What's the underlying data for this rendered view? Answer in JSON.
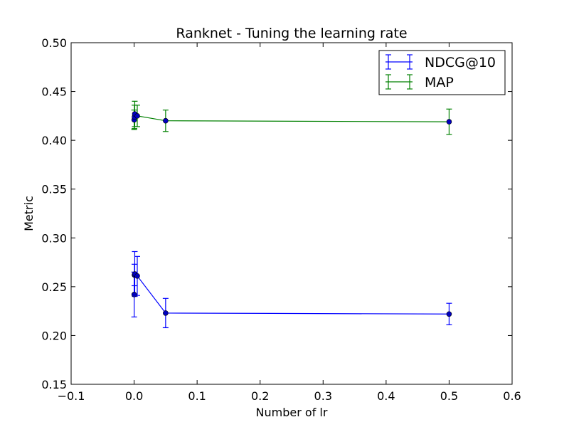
{
  "chart_data": {
    "type": "line",
    "title": "Ranknet - Tuning the learning rate",
    "xlabel": "Number of lr",
    "ylabel": "Metric",
    "xlim": [
      -0.1,
      0.6
    ],
    "ylim": [
      0.15,
      0.5
    ],
    "xticks": [
      -0.1,
      0.0,
      0.1,
      0.2,
      0.3,
      0.4,
      0.5,
      0.6
    ],
    "xtick_labels": [
      "−0.1",
      "0.0",
      "0.1",
      "0.2",
      "0.3",
      "0.4",
      "0.5",
      "0.6"
    ],
    "yticks": [
      0.15,
      0.2,
      0.25,
      0.3,
      0.35,
      0.4,
      0.45,
      0.5
    ],
    "ytick_labels": [
      "0.15",
      "0.20",
      "0.25",
      "0.30",
      "0.35",
      "0.40",
      "0.45",
      "0.50"
    ],
    "grid": false,
    "legend_position": "top-right",
    "series": [
      {
        "name": "NDCG@10",
        "color": "#0000ff",
        "x": [
          0.0001,
          0.0005,
          0.001,
          0.005,
          0.05,
          0.5
        ],
        "y": [
          0.242,
          0.262,
          0.263,
          0.261,
          0.223,
          0.222
        ],
        "yerr": [
          0.023,
          0.011,
          0.023,
          0.02,
          0.015,
          0.011
        ]
      },
      {
        "name": "MAP",
        "color": "#008000",
        "x": [
          0.0001,
          0.0005,
          0.001,
          0.005,
          0.05,
          0.5
        ],
        "y": [
          0.421,
          0.424,
          0.427,
          0.425,
          0.42,
          0.419
        ],
        "yerr": [
          0.01,
          0.012,
          0.013,
          0.011,
          0.011,
          0.013
        ]
      }
    ]
  }
}
